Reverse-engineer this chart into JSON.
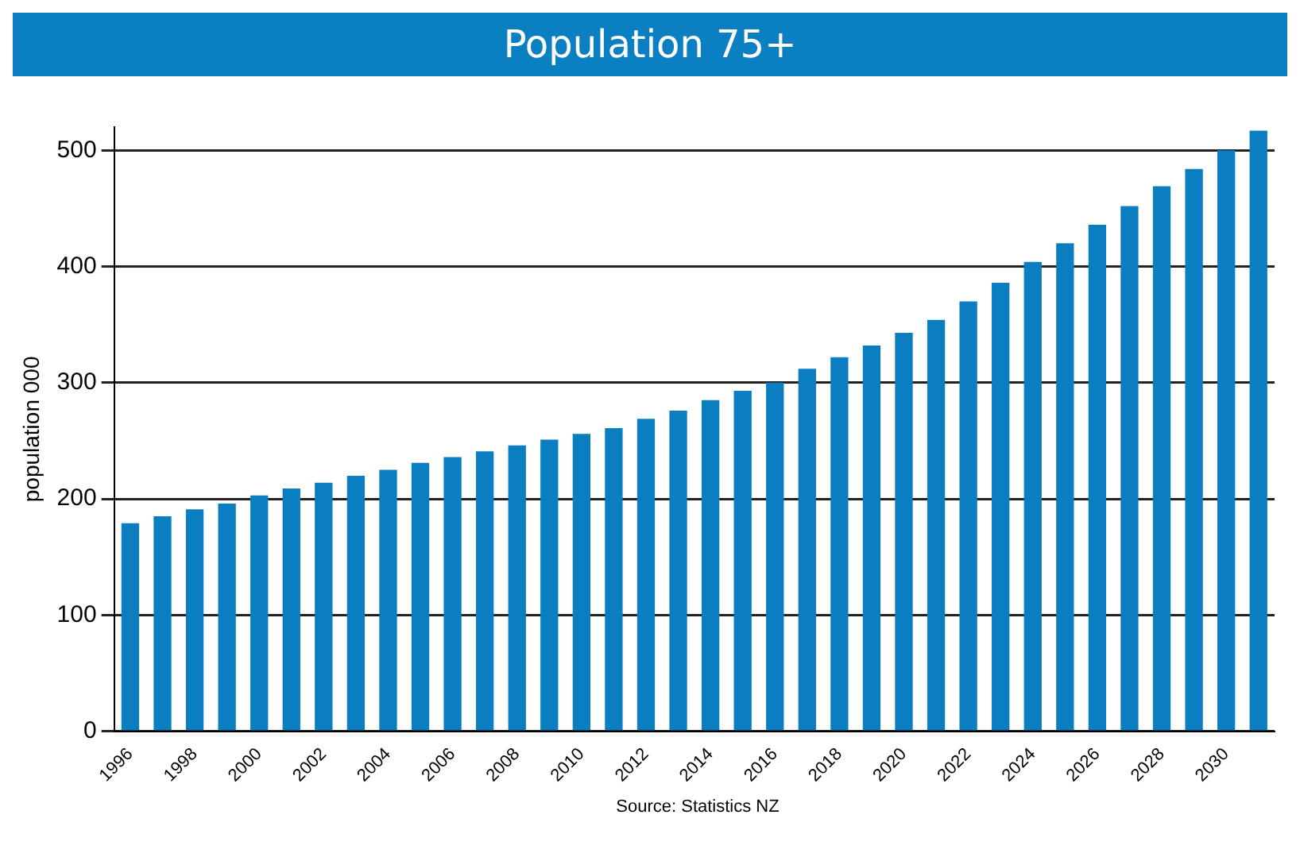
{
  "chart_data": {
    "type": "bar",
    "title": "Population 75+",
    "ylabel": "population 000",
    "categories": [
      "1996",
      null,
      "1998",
      null,
      "2000",
      null,
      "2002",
      null,
      "2004",
      null,
      "2006",
      null,
      "2008",
      null,
      "2010",
      null,
      "2012",
      null,
      "2014",
      null,
      "2016",
      null,
      "2018",
      null,
      "2020",
      null,
      "2022",
      null,
      "2024",
      null,
      "2026",
      null,
      "2028",
      null,
      "2030",
      null
    ],
    "values": [
      179,
      185,
      191,
      196,
      203,
      209,
      214,
      220,
      225,
      231,
      236,
      241,
      246,
      251,
      256,
      261,
      269,
      276,
      285,
      293,
      300,
      312,
      322,
      332,
      343,
      354,
      370,
      386,
      404,
      420,
      436,
      452,
      469,
      484,
      500,
      517
    ],
    "color": "#0b7dc1",
    "ylim": [
      0,
      520
    ],
    "yticks": [
      0,
      100,
      200,
      300,
      400,
      500
    ],
    "grid": "y",
    "legend": false,
    "annotations": [
      "Source: Statistics NZ"
    ]
  }
}
